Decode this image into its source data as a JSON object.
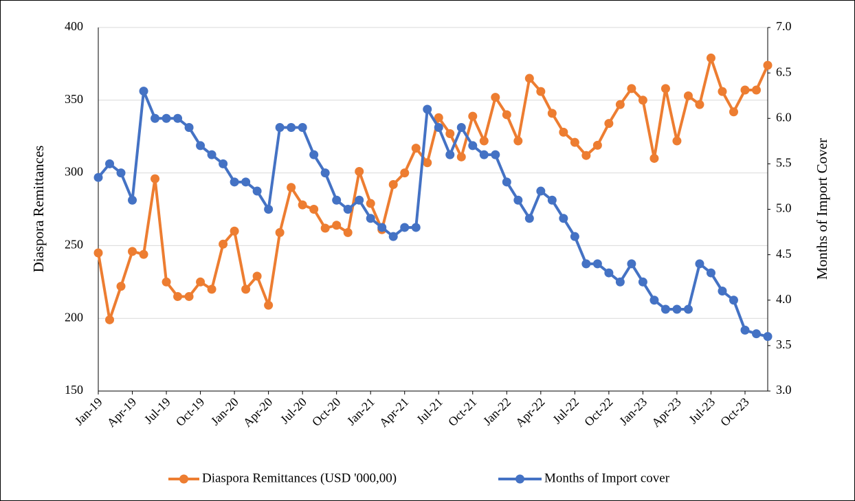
{
  "chart_data": {
    "type": "line",
    "categories": [
      "Jan-19",
      null,
      null,
      "Apr-19",
      null,
      null,
      "Jul-19",
      null,
      null,
      "Oct-19",
      null,
      null,
      "Jan-20",
      null,
      null,
      "Apr-20",
      null,
      null,
      "Jul-20",
      null,
      null,
      "Oct-20",
      null,
      null,
      "Jan-21",
      null,
      null,
      "Apr-21",
      null,
      null,
      "Jul-21",
      null,
      null,
      "Oct-21",
      null,
      null,
      "Jan-22",
      null,
      null,
      "Apr-22",
      null,
      null,
      "Jul-22",
      null,
      null,
      "Oct-22",
      null,
      null,
      "Jan-23",
      null,
      null,
      "Apr-23",
      null,
      null,
      "Jul-23",
      null,
      null,
      "Oct-23",
      null,
      null
    ],
    "series": [
      {
        "name": "Diaspora Remittances (USD '000,00)",
        "color": "#ed7d31",
        "axis": "y",
        "values": [
          245,
          199,
          222,
          246,
          244,
          296,
          225,
          215,
          215,
          225,
          220,
          251,
          260,
          220,
          229,
          209,
          259,
          290,
          278,
          275,
          262,
          264,
          259,
          301,
          279,
          261,
          292,
          300,
          317,
          307,
          338,
          327,
          311,
          339,
          322,
          352,
          340,
          322,
          365,
          356,
          341,
          328,
          321,
          312,
          319,
          334,
          347,
          358,
          350,
          310,
          358,
          322,
          353,
          347,
          379,
          356,
          342,
          357,
          357,
          374
        ]
      },
      {
        "name": "Months of Import cover",
        "color": "#4472c4",
        "axis": "y2",
        "values": [
          5.35,
          5.5,
          5.4,
          5.1,
          6.3,
          6.0,
          6.0,
          6.0,
          5.9,
          5.7,
          5.6,
          5.5,
          5.3,
          5.3,
          5.2,
          5.0,
          5.9,
          5.9,
          5.9,
          5.6,
          5.4,
          5.1,
          5.0,
          5.1,
          4.9,
          4.8,
          4.7,
          4.8,
          4.8,
          6.1,
          5.9,
          5.6,
          5.9,
          5.7,
          5.6,
          5.6,
          5.3,
          5.1,
          4.9,
          5.2,
          5.1,
          4.9,
          4.7,
          4.4,
          4.4,
          4.3,
          4.2,
          4.4,
          4.2,
          4.0,
          3.9,
          3.9,
          3.9,
          4.4,
          4.3,
          4.1,
          4.0,
          3.67,
          3.63,
          3.6
        ]
      }
    ],
    "ylabel": "Diaspora Remittances",
    "y2label": "Months of Import Cover",
    "ylim": [
      150,
      400
    ],
    "yticks": [
      150,
      200,
      250,
      300,
      350,
      400
    ],
    "y2lim": [
      3,
      7
    ],
    "y2ticks": [
      {
        "value": 3,
        "label": "3.0"
      },
      3.5,
      {
        "value": 4,
        "label": "4.0"
      },
      4.5,
      {
        "value": 5,
        "label": "5.0"
      },
      5.5,
      {
        "value": 6,
        "label": "6.0"
      },
      6.5,
      {
        "value": 7,
        "label": "7.0"
      }
    ],
    "grid": true,
    "legend": "bottom"
  }
}
